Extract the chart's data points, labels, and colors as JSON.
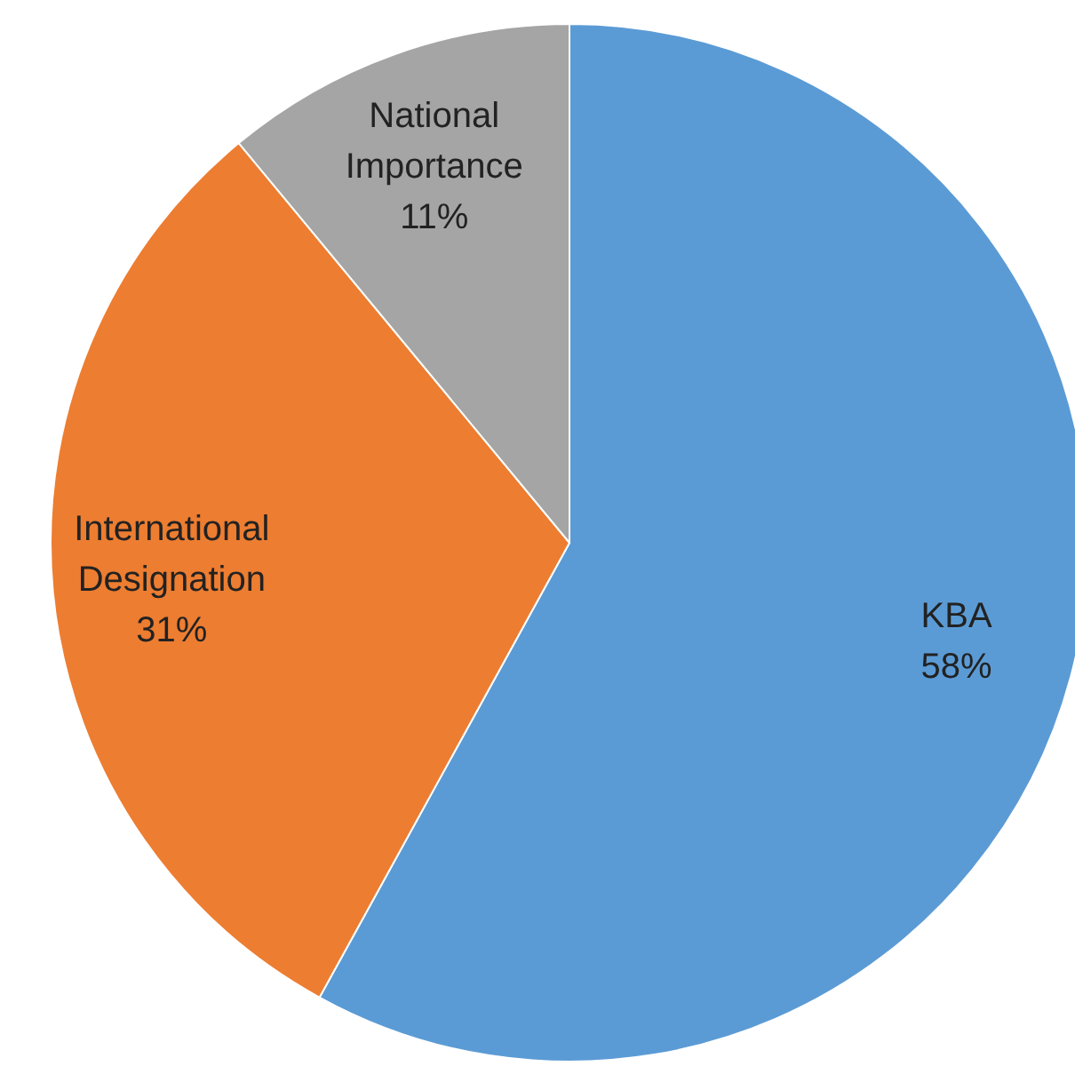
{
  "chart_data": {
    "type": "pie",
    "categories": [
      "KBA",
      "International Designation",
      "National Importance"
    ],
    "values": [
      58,
      31,
      11
    ],
    "colors": [
      "#5b9bd5",
      "#ed7d31",
      "#a5a5a5"
    ],
    "value_labels": [
      "58%",
      "31%",
      "11%"
    ]
  }
}
